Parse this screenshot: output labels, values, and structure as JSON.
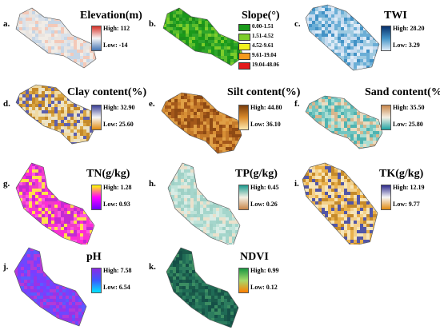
{
  "panels": [
    {
      "id": "a",
      "label": "a.",
      "title": "Elevation(m)",
      "high": "High: 112",
      "low": "Low: -14",
      "grad": [
        "#d73027",
        "#f7f7f7",
        "#4575b4"
      ],
      "fills": [
        "#f1ece6",
        "#e9e4e0",
        "#d9e1ea",
        "#f4c9b8",
        "#c6d6e6"
      ]
    },
    {
      "id": "b",
      "label": "b.",
      "title": "Slope(°)",
      "classes": [
        {
          "text": "0.00-1.51",
          "color": "#1a9a1a"
        },
        {
          "text": "1.51-4.52",
          "color": "#7ccd2a"
        },
        {
          "text": "4.52-9.61",
          "color": "#f2f21e"
        },
        {
          "text": "9.61-19.04",
          "color": "#f59a1e"
        },
        {
          "text": "19.04-48.06",
          "color": "#e31a1c"
        }
      ],
      "fills": [
        "#1a9a1a",
        "#2fa52a",
        "#5cbd2c",
        "#7ccd2a",
        "#1d8f1d"
      ]
    },
    {
      "id": "c",
      "label": "c.",
      "title": "TWI",
      "high": "High: 28.20",
      "low": "Low: 3.29",
      "grad": [
        "#08306b",
        "#4292c6",
        "#deebf7"
      ],
      "fills": [
        "#6baed6",
        "#9ecae1",
        "#c6dbef",
        "#4292c6",
        "#deebf7"
      ]
    },
    {
      "id": "d",
      "label": "d.",
      "title": "Clay content(%)",
      "high": "High: 32.90",
      "low": "Low: 25.60",
      "grad": [
        "#3a3f96",
        "#f7f7f7",
        "#e08a10"
      ],
      "fills": [
        "#d9a441",
        "#ece3c6",
        "#5c5fae",
        "#efd9a1",
        "#c58a2a"
      ]
    },
    {
      "id": "e",
      "label": "e.",
      "title": "Silt content(%)",
      "high": "High: 44.80",
      "low": "Low: 36.10",
      "grad": [
        "#7a3d0c",
        "#d98a2b",
        "#fde9b0"
      ],
      "fills": [
        "#c47a2a",
        "#a4581a",
        "#e0a046",
        "#8e4a14",
        "#d88f35"
      ]
    },
    {
      "id": "f",
      "label": "f.",
      "title": "Sand content(%)",
      "high": "High: 35.50",
      "low": "Low: 25.80",
      "grad": [
        "#c8864a",
        "#f4f0e4",
        "#1fa3a3"
      ],
      "fills": [
        "#72c5c0",
        "#a9ddd2",
        "#e9dcc1",
        "#4fb3b1",
        "#d6b68d"
      ]
    },
    {
      "id": "g",
      "label": "g.",
      "title": "TN(g/kg)",
      "high": "High: 1.28",
      "low": "Low: 0.93",
      "grad": [
        "#ffff00",
        "#ff00ff",
        "#6a00ff"
      ],
      "fills": [
        "#ff2bd8",
        "#f03cc8",
        "#ffe04a",
        "#c42ad2",
        "#ff57e0"
      ]
    },
    {
      "id": "h",
      "label": "h.",
      "title": "TP(g/kg)",
      "high": "High: 0.45",
      "low": "Low: 0.26",
      "grad": [
        "#1d9a8e",
        "#f4f0e4",
        "#c8864a"
      ],
      "fills": [
        "#bfe3d9",
        "#d8ece5",
        "#a5d6cc",
        "#ebe1cc",
        "#9fd1c6"
      ]
    },
    {
      "id": "i",
      "label": "i.",
      "title": "TK(g/kg)",
      "high": "High: 12.19",
      "low": "Low: 9.77",
      "grad": [
        "#2e2a8c",
        "#f7f7f7",
        "#e08a10"
      ],
      "fills": [
        "#f3d08a",
        "#e9b04a",
        "#5256a7",
        "#f6e5b8",
        "#c58a2a"
      ]
    },
    {
      "id": "j",
      "label": "j.",
      "title": "pH",
      "high": "High: 7.58",
      "low": "Low: 6.54",
      "grad": [
        "#8a2be2",
        "#3b5bff",
        "#00e5ff"
      ],
      "fills": [
        "#7b3dff",
        "#9a33e6",
        "#5b5bff",
        "#b23ad8",
        "#6d48ff"
      ]
    },
    {
      "id": "k",
      "label": "k.",
      "title": "NDVI",
      "high": "High: 0.99",
      "low": "Low: 0.12",
      "grad": [
        "#1a9641",
        "#a6d96a",
        "#ff7f00"
      ],
      "fills": [
        "#1f6b55",
        "#2c7c5e",
        "#1a5a4a",
        "#3b8d62",
        "#155047"
      ]
    }
  ]
}
